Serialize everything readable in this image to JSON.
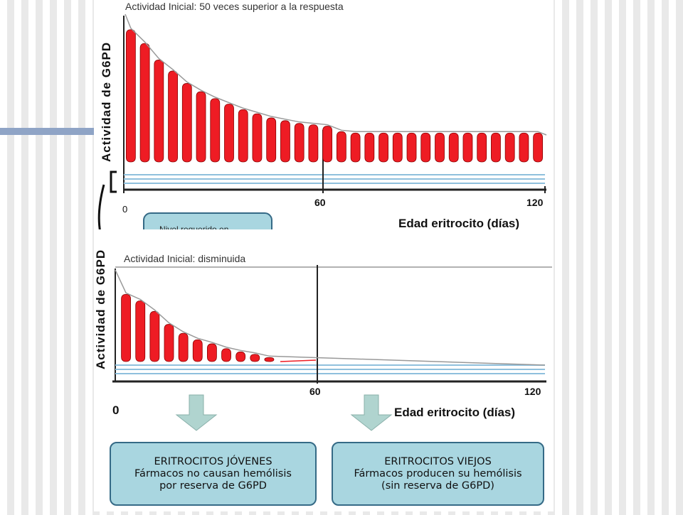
{
  "colors": {
    "bar": "#ee1c24",
    "bar_edge": "#8a0000",
    "envelope": "#999999",
    "reserve_line": "#8fc0dd",
    "box_fill": "#a9d6e0",
    "box_border": "#356a86",
    "arrow": "#b0d4cf"
  },
  "chart_data": [
    {
      "type": "bar",
      "title": "Actividad Inicial: 50 veces superior a la respuesta",
      "ylabel": "Actividad de G6PD",
      "xlabel": "Edad eritrocito (días)",
      "xticks": [
        {
          "value": 0,
          "label": "0"
        },
        {
          "value": 60,
          "label": "60"
        },
        {
          "value": 120,
          "label": "120"
        }
      ],
      "xlim": [
        0,
        120
      ],
      "ylim": [
        0,
        100
      ],
      "x": [
        2,
        6,
        10,
        14,
        18,
        22,
        26,
        30,
        34,
        38,
        42,
        46,
        50,
        54,
        58,
        62,
        66,
        70,
        74,
        78,
        82,
        86,
        90,
        94,
        98,
        102,
        106,
        110,
        114,
        118
      ],
      "values": [
        96,
        86,
        74,
        66,
        57,
        51,
        46,
        42,
        38,
        35,
        32,
        30,
        28,
        27,
        26,
        22,
        21,
        21,
        21,
        21,
        21,
        21,
        21,
        21,
        21,
        21,
        21,
        21,
        21,
        21
      ]
    },
    {
      "type": "bar",
      "title": "Actividad Inicial: disminuida",
      "ylabel": "Actividad de G6PD",
      "xlabel": "Edad eritrocito (días)",
      "xticks": [
        {
          "value": 0,
          "label": "0"
        },
        {
          "value": 60,
          "label": "60"
        },
        {
          "value": 120,
          "label": "120"
        }
      ],
      "xlim": [
        0,
        120
      ],
      "ylim": [
        0,
        100
      ],
      "x": [
        3,
        7,
        11,
        15,
        19,
        23,
        27,
        31,
        35,
        39,
        43
      ],
      "values": [
        83,
        75,
        62,
        46,
        35,
        27,
        22,
        16,
        12,
        9,
        5
      ]
    }
  ],
  "partial_label": "Nivel requerido en",
  "boxes": [
    {
      "line1": "ERITROCITOS JÓVENES",
      "line2": "Fármacos no causan hemólisis",
      "line3": "por reserva de G6PD"
    },
    {
      "line1": "ERITROCITOS VIEJOS",
      "line2": "Fármacos producen su hemólisis",
      "line3": "(sin reserva de G6PD)"
    }
  ]
}
